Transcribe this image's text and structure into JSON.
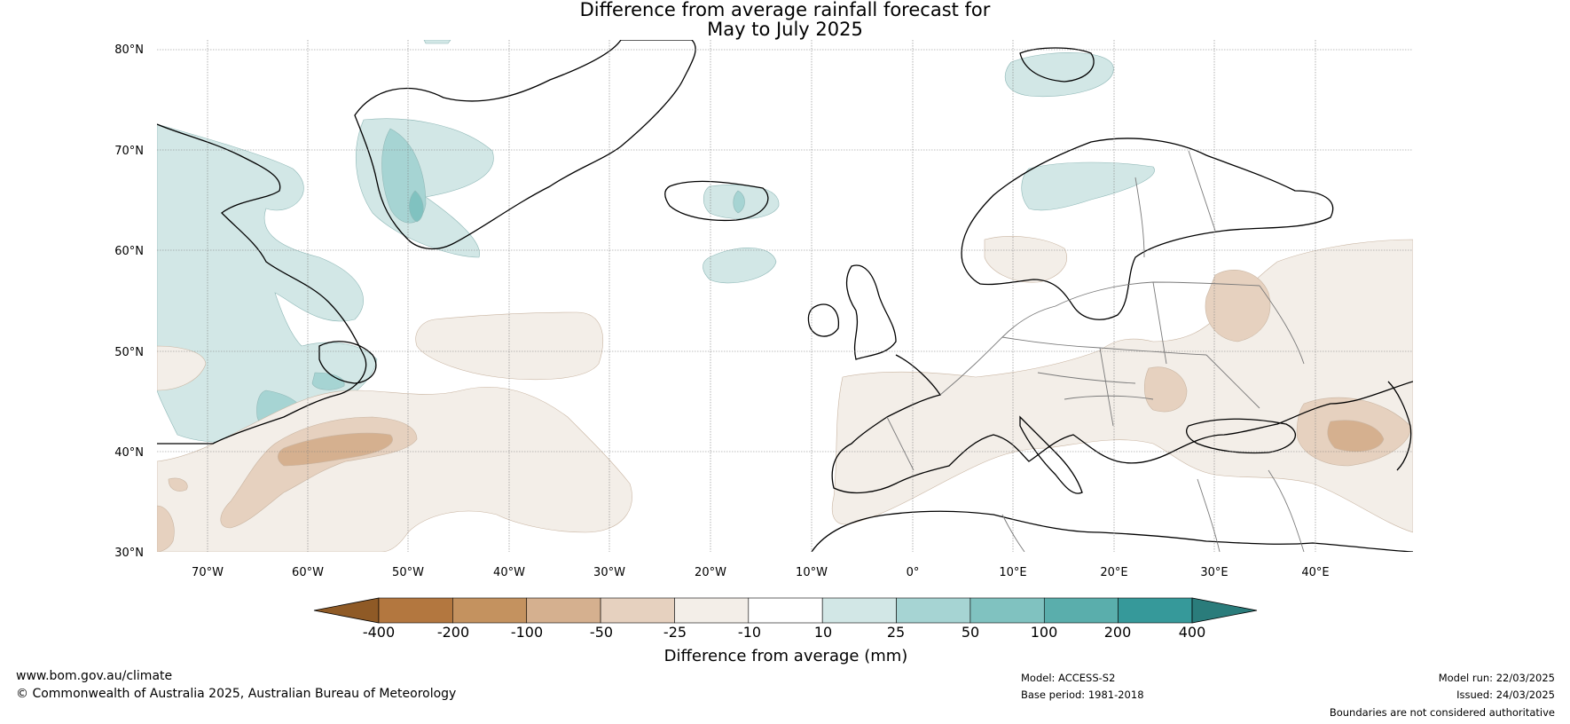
{
  "title_line1": "Difference from average rainfall forecast for",
  "title_line2": "May to July 2025",
  "lat_labels": [
    "80°N",
    "70°N",
    "60°N",
    "50°N",
    "40°N",
    "30°N"
  ],
  "lon_labels": [
    "70°W",
    "60°W",
    "50°W",
    "40°W",
    "30°W",
    "20°W",
    "10°W",
    "0°",
    "10°E",
    "20°E",
    "30°E",
    "40°E"
  ],
  "colorbar": {
    "ticks": [
      "-400",
      "-200",
      "-100",
      "-50",
      "-25",
      "-10",
      "10",
      "25",
      "50",
      "100",
      "200",
      "400"
    ],
    "colors": [
      "#8f5a26",
      "#b3773f",
      "#c4925f",
      "#d5b08f",
      "#e6d1bf",
      "#f3eee8",
      "#ffffff",
      "#d2e7e6",
      "#a6d4d3",
      "#80c2c0",
      "#5aaeac",
      "#36999a",
      "#2a7c7b"
    ],
    "label": "Difference from average (mm)"
  },
  "footer": {
    "url": "www.bom.gov.au/climate",
    "copyright": "© Commonwealth of Australia 2025, Australian Bureau of Meteorology",
    "model": "Model: ACCESS-S2",
    "base_period": "Base period: 1981-2018",
    "model_run": "Model run: 22/03/2025",
    "issued": "Issued: 24/03/2025",
    "disclaimer": "Boundaries are not considered authoritative"
  }
}
